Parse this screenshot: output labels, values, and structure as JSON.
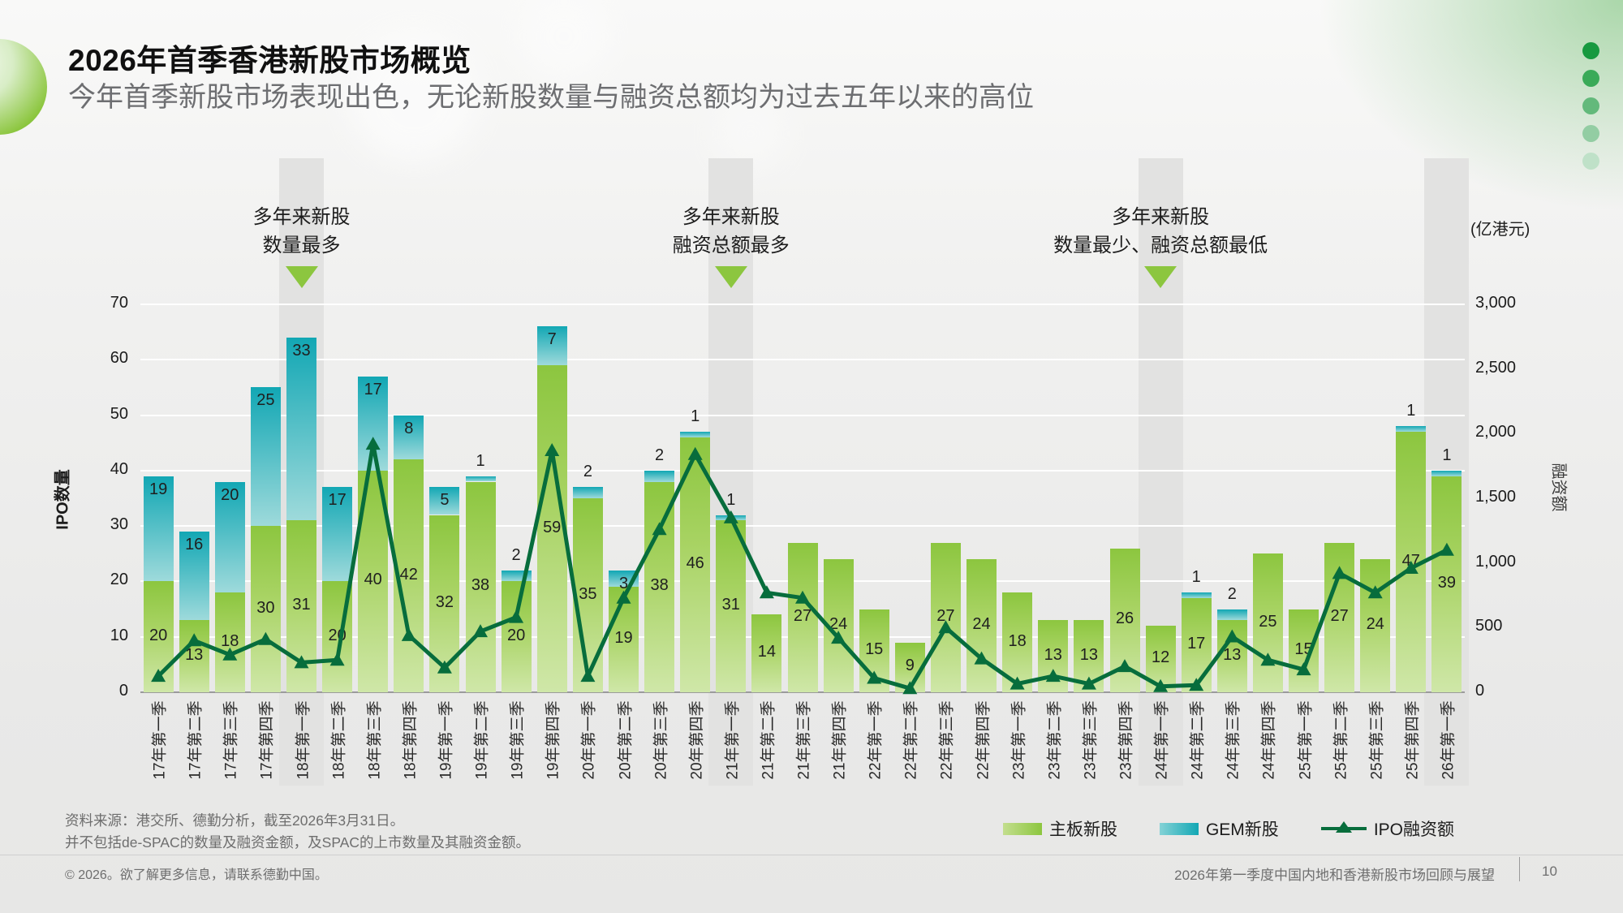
{
  "header": {
    "title": "2026年首季香港新股市场概览",
    "subtitle": "今年首季新股市场表现出色，无论新股数量与融资总额均为过去五年以来的高位"
  },
  "colors": {
    "main_green_top": "#8cc63f",
    "main_green_mid": "#a8d363",
    "main_green_bottom": "#cfe7a8",
    "gem_teal_top": "#12a7b4",
    "gem_teal_bottom": "#9edadb",
    "line_green": "#076d3c",
    "annotation_arrow": "#8cc63f",
    "highlight_band": "#e2e2e1",
    "gridline": "#ffffff",
    "axis_line": "#9b9b9b",
    "dot_colors": [
      "#17993f",
      "#3aaa58",
      "#63b97b",
      "#93cda3",
      "#bfe1c8"
    ]
  },
  "chart_data": {
    "type": "combo-stacked-bar-line",
    "title": "",
    "unit_label": "(亿港元)",
    "y_left_title": "IPO数量",
    "y_right_title": "融资额",
    "ylim_left": [
      0,
      70
    ],
    "ylim_right": [
      0,
      3000
    ],
    "left_ticks": [
      "0",
      "10",
      "20",
      "30",
      "40",
      "50",
      "60",
      "70"
    ],
    "right_ticks": [
      "0",
      "500",
      "1,000",
      "1,500",
      "2,000",
      "2,500",
      "3,000"
    ],
    "categories": [
      "17年第一季",
      "17年第二季",
      "17年第三季",
      "17年第四季",
      "18年第一季",
      "18年第二季",
      "18年第三季",
      "18年第四季",
      "19年第一季",
      "19年第二季",
      "19年第三季",
      "19年第四季",
      "20年第一季",
      "20年第二季",
      "20年第三季",
      "20年第四季",
      "21年第一季",
      "21年第二季",
      "21年第三季",
      "21年第四季",
      "22年第一季",
      "22年第二季",
      "22年第三季",
      "22年第四季",
      "23年第一季",
      "23年第二季",
      "23年第三季",
      "23年第四季",
      "24年第一季",
      "24年第二季",
      "24年第三季",
      "24年第四季",
      "25年第一季",
      "25年第二季",
      "25年第三季",
      "25年第四季",
      "26年第一季"
    ],
    "series_main": {
      "name": "主板新股",
      "values": [
        20,
        13,
        18,
        30,
        31,
        20,
        40,
        42,
        32,
        38,
        20,
        59,
        35,
        19,
        38,
        46,
        31,
        14,
        27,
        24,
        15,
        9,
        27,
        24,
        18,
        13,
        13,
        26,
        12,
        17,
        13,
        25,
        15,
        27,
        24,
        47,
        39
      ]
    },
    "series_gem": {
      "name": "GEM新股",
      "values": [
        19,
        16,
        20,
        25,
        33,
        17,
        17,
        8,
        5,
        1,
        2,
        7,
        2,
        3,
        2,
        1,
        1,
        0,
        0,
        0,
        0,
        0,
        0,
        0,
        0,
        0,
        0,
        0,
        0,
        1,
        2,
        0,
        0,
        0,
        0,
        1,
        1
      ]
    },
    "line_series": {
      "name": "IPO融资额",
      "values": [
        125,
        400,
        290,
        410,
        230,
        250,
        1920,
        440,
        190,
        470,
        580,
        1870,
        125,
        730,
        1260,
        1840,
        1350,
        770,
        730,
        420,
        110,
        30,
        500,
        260,
        65,
        125,
        65,
        200,
        45,
        55,
        430,
        250,
        175,
        920,
        770,
        960,
        1100
      ]
    },
    "highlighted_slots": [
      4,
      16,
      28,
      36
    ],
    "annotations": [
      {
        "slot": 4,
        "lines": [
          "多年来新股",
          "数量最多"
        ]
      },
      {
        "slot": 16,
        "lines": [
          "多年来新股",
          "融资总额最多"
        ]
      },
      {
        "slot": 28,
        "lines": [
          "多年来新股",
          "数量最少、融资总额最低"
        ]
      }
    ],
    "legend_position": "bottom-right",
    "grid": "horizontal"
  },
  "footer": {
    "source_line1": "资料来源：港交所、德勤分析，截至2026年3月31日。",
    "source_line2": "并不包括de-SPAC的数量及融资金额，及SPAC的上市数量及其融资金额。",
    "copyright": "© 2026。欲了解更多信息，请联系德勤中国。",
    "deck_title": "2026年第一季度中国内地和香港新股市场回顾与展望",
    "page_number": "10"
  }
}
